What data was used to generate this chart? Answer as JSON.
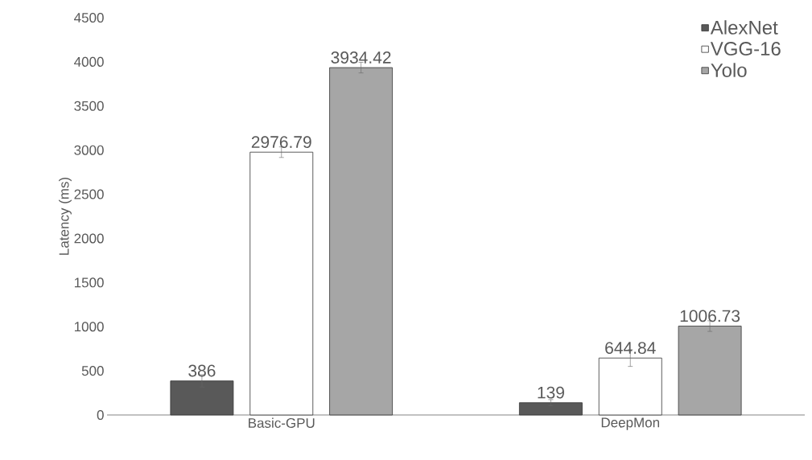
{
  "chart_data": {
    "type": "bar",
    "ylabel": "Latency (ms)",
    "categories": [
      "Basic-GPU",
      "DeepMon"
    ],
    "series": [
      {
        "name": "AlexNet",
        "color": "#595959",
        "values": [
          386,
          139
        ],
        "errors": [
          70,
          35
        ]
      },
      {
        "name": "VGG-16",
        "color": "#ffffff",
        "values": [
          2976.79,
          644.84
        ],
        "errors": [
          60,
          95
        ]
      },
      {
        "name": "Yolo",
        "color": "#a6a6a6",
        "values": [
          3934.42,
          1006.73
        ],
        "errors": [
          60,
          60
        ]
      }
    ],
    "ylim": [
      0,
      4500
    ],
    "yticks": [
      0,
      500,
      1000,
      1500,
      2000,
      2500,
      3000,
      3500,
      4000,
      4500
    ],
    "data_labels": true,
    "legend": "top right",
    "grid": false
  }
}
